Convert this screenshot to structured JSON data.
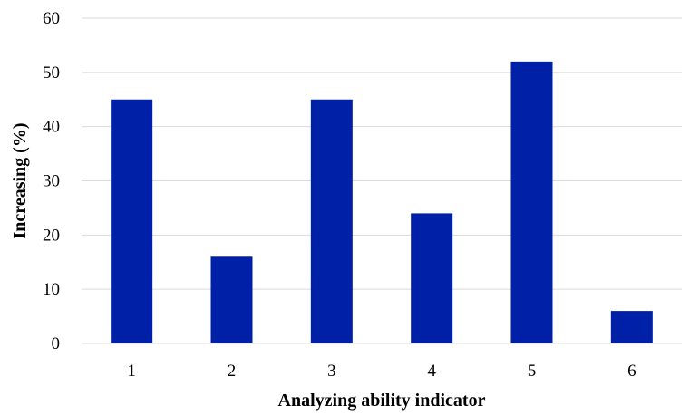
{
  "chart_data": {
    "type": "bar",
    "title": "",
    "xlabel": "Analyzing ability indicator",
    "ylabel": "Increasing (%)",
    "categories": [
      "1",
      "2",
      "3",
      "4",
      "5",
      "6"
    ],
    "values": [
      45,
      16,
      45,
      24,
      52,
      6
    ],
    "ylim": [
      0,
      60
    ],
    "yticks": [
      "0",
      "10",
      "20",
      "30",
      "40",
      "50",
      "60"
    ],
    "grid": true,
    "legend": "none",
    "bar_color": "#0020A8",
    "grid_color": "#d9d9d9"
  }
}
